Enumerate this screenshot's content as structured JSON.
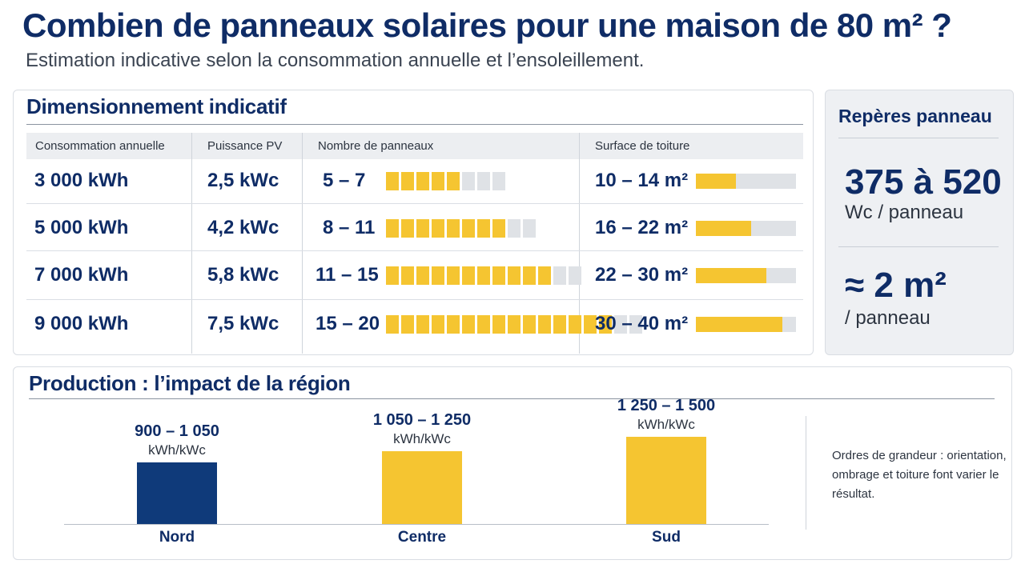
{
  "title": "Combien de panneaux solaires pour une maison de 80 m² ?",
  "subtitle": "Estimation indicative selon la consommation annuelle et l’ensoleillement.",
  "sizing": {
    "heading": "Dimensionnement indicatif",
    "columns": [
      "Consommation annuelle",
      "Puissance PV",
      "Nombre de panneaux",
      "Surface de toiture"
    ],
    "rows": [
      {
        "consumption": "3 000 kWh",
        "power": "2,5 kWc",
        "panels": "5 – 7",
        "panels_filled": 5,
        "panels_total": 8,
        "surface": "10 – 14 m²",
        "surface_fill": 0.4
      },
      {
        "consumption": "5 000 kWh",
        "power": "4,2 kWc",
        "panels": "8 – 11",
        "panels_filled": 8,
        "panels_total": 10,
        "surface": "16 – 22 m²",
        "surface_fill": 0.55
      },
      {
        "consumption": "7 000 kWh",
        "power": "5,8 kWc",
        "panels": "11 – 15",
        "panels_filled": 11,
        "panels_total": 13,
        "surface": "22 – 30 m²",
        "surface_fill": 0.7
      },
      {
        "consumption": "9 000 kWh",
        "power": "7,5 kWc",
        "panels": "15 – 20",
        "panels_filled": 15,
        "panels_total": 17,
        "surface": "30 – 40 m²",
        "surface_fill": 0.86
      }
    ]
  },
  "panel_refs": {
    "heading": "Repères panneau",
    "power_value": "375 à 520",
    "power_unit": "Wc / panneau",
    "area_value": "≈ 2 m²",
    "area_unit": "/ panneau"
  },
  "production": {
    "heading": "Production : l’impact de la région",
    "note": "Ordres de grandeur : orientation, ombrage et toiture font varier le résultat."
  },
  "colors": {
    "navy": "#0f3a7a",
    "yellow": "#f5c531",
    "track": "#dfe2e6"
  },
  "chart_data": {
    "type": "bar",
    "categories": [
      "Nord",
      "Centre",
      "Sud"
    ],
    "range_labels": [
      "900 – 1 050",
      "1 050 – 1 250",
      "1 250 – 1 500"
    ],
    "unit": "kWh/kWc",
    "values": [
      975,
      1150,
      1375
    ],
    "colors": [
      "#0f3a7a",
      "#f5c531",
      "#f5c531"
    ],
    "ylim": [
      0,
      1600
    ],
    "grid": false,
    "legend": "none"
  }
}
